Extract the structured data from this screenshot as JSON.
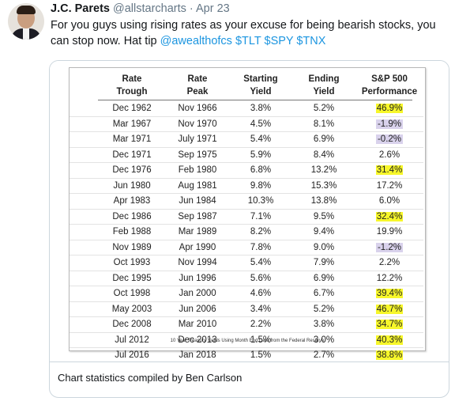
{
  "tweet": {
    "author_name": "J.C. Parets",
    "handle": "@allstarcharts",
    "separator": "·",
    "date": "Apr 23",
    "text": "For you guys using rising rates as your excuse for being bearish stocks, you can stop now. Hat tip ",
    "mention": "@awealthofcs",
    "cashtags": "$TLT $SPY $TNX"
  },
  "card": {
    "caption": "Chart statistics compiled by Ben Carlson"
  },
  "table": {
    "headers": [
      {
        "line1": "Rate",
        "line2": "Trough"
      },
      {
        "line1": "Rate",
        "line2": "Peak"
      },
      {
        "line1": "Starting",
        "line2": "Yield"
      },
      {
        "line1": "Ending",
        "line2": "Yield"
      },
      {
        "line1": "S&P 500",
        "line2": "Performance"
      }
    ],
    "rows": [
      {
        "trough": "Dec 1962",
        "peak": "Nov 1966",
        "start": "3.8%",
        "end": "5.2%",
        "perf": "46.9%",
        "highlight": "yellow"
      },
      {
        "trough": "Mar 1967",
        "peak": "Nov 1970",
        "start": "4.5%",
        "end": "8.1%",
        "perf": "-1.9%",
        "highlight": "purple"
      },
      {
        "trough": "Mar 1971",
        "peak": "July 1971",
        "start": "5.4%",
        "end": "6.9%",
        "perf": "-0.2%",
        "highlight": "purple"
      },
      {
        "trough": "Dec 1971",
        "peak": "Sep 1975",
        "start": "5.9%",
        "end": "8.4%",
        "perf": "2.6%",
        "highlight": "none"
      },
      {
        "trough": "Dec 1976",
        "peak": "Feb 1980",
        "start": "6.8%",
        "end": "13.2%",
        "perf": "31.4%",
        "highlight": "yellow"
      },
      {
        "trough": "Jun 1980",
        "peak": "Aug 1981",
        "start": "9.8%",
        "end": "15.3%",
        "perf": "17.2%",
        "highlight": "none"
      },
      {
        "trough": "Apr 1983",
        "peak": "Jun 1984",
        "start": "10.3%",
        "end": "13.8%",
        "perf": "6.0%",
        "highlight": "none"
      },
      {
        "trough": "Dec 1986",
        "peak": "Sep 1987",
        "start": "7.1%",
        "end": "9.5%",
        "perf": "32.4%",
        "highlight": "yellow"
      },
      {
        "trough": "Feb 1988",
        "peak": "Mar 1989",
        "start": "8.2%",
        "end": "9.4%",
        "perf": "19.9%",
        "highlight": "none"
      },
      {
        "trough": "Nov 1989",
        "peak": "Apr 1990",
        "start": "7.8%",
        "end": "9.0%",
        "perf": "-1.2%",
        "highlight": "purple"
      },
      {
        "trough": "Oct 1993",
        "peak": "Nov 1994",
        "start": "5.4%",
        "end": "7.9%",
        "perf": "2.2%",
        "highlight": "none"
      },
      {
        "trough": "Dec 1995",
        "peak": "Jun 1996",
        "start": "5.6%",
        "end": "6.9%",
        "perf": "12.2%",
        "highlight": "none"
      },
      {
        "trough": "Oct 1998",
        "peak": "Jan 2000",
        "start": "4.6%",
        "end": "6.7%",
        "perf": "39.4%",
        "highlight": "yellow"
      },
      {
        "trough": "May 2003",
        "peak": "Jun 2006",
        "start": "3.4%",
        "end": "5.2%",
        "perf": "46.7%",
        "highlight": "yellow"
      },
      {
        "trough": "Dec 2008",
        "peak": "Mar 2010",
        "start": "2.2%",
        "end": "3.8%",
        "perf": "34.7%",
        "highlight": "yellow"
      },
      {
        "trough": "Jul 2012",
        "peak": "Dec 2013",
        "start": "1.5%",
        "end": "3.0%",
        "perf": "40.3%",
        "highlight": "yellow"
      },
      {
        "trough": "Jul 2016",
        "peak": "Jan 2018",
        "start": "1.5%",
        "end": "2.7%",
        "perf": "38.8%",
        "highlight": "yellow"
      }
    ],
    "footnote": "10 Year Treasury Yields Using Month End Data from the Federal Reserve"
  },
  "colors": {
    "highlight_yellow": "#f7f72a",
    "highlight_purple": "#d9d2ec",
    "link_blue": "#1b95e0"
  }
}
